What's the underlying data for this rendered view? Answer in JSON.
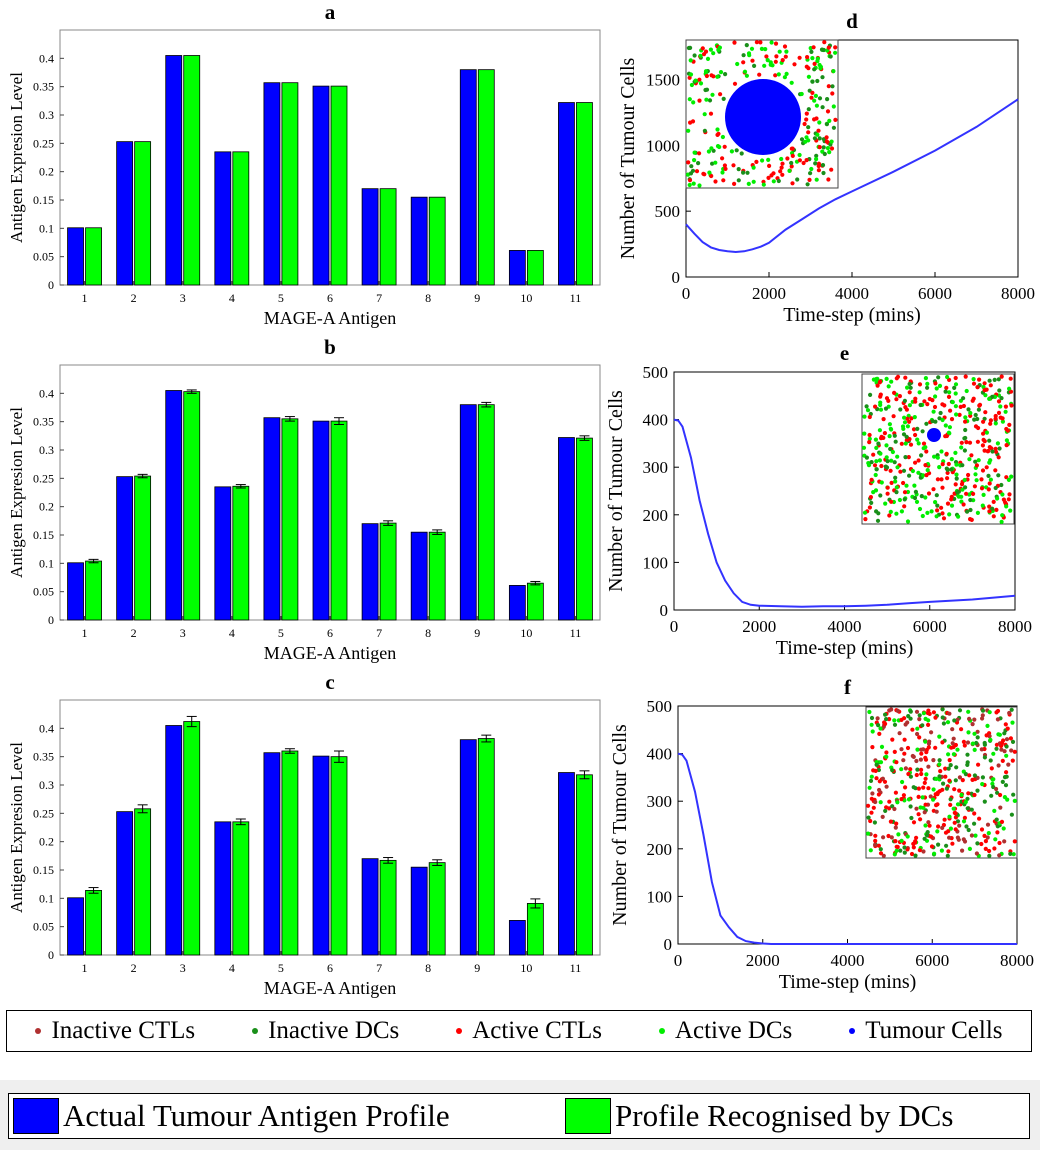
{
  "colors": {
    "actual": "#0000ff",
    "dc": "#00ff00",
    "line": "#3333ff",
    "inactive_ctl": "#b03030",
    "inactive_dc": "#1a8f1a",
    "active_ctl": "#ff0000",
    "active_dc": "#00ee00",
    "tumour": "#0000ff"
  },
  "chart_data": [
    {
      "id": "a",
      "type": "bar",
      "title": "a",
      "xlabel": "MAGE-A Antigen",
      "ylabel": "Antigen Expresion Level",
      "categories": [
        "1",
        "2",
        "3",
        "4",
        "5",
        "6",
        "7",
        "8",
        "9",
        "10",
        "11"
      ],
      "ylim": [
        0,
        0.45
      ],
      "yticks": [
        "0",
        "0.05",
        "0.1",
        "0.15",
        "0.2",
        "0.25",
        "0.3",
        "0.35",
        "0.4"
      ],
      "series": [
        {
          "name": "Actual Tumour Antigen Profile",
          "values": [
            0.101,
            0.253,
            0.405,
            0.235,
            0.357,
            0.351,
            0.17,
            0.155,
            0.38,
            0.061,
            0.322
          ],
          "err": [
            0,
            0,
            0,
            0,
            0,
            0,
            0,
            0,
            0,
            0,
            0
          ]
        },
        {
          "name": "Profile Recognised by DCs",
          "values": [
            0.101,
            0.253,
            0.405,
            0.235,
            0.357,
            0.351,
            0.17,
            0.155,
            0.38,
            0.061,
            0.322
          ],
          "err": [
            0,
            0,
            0,
            0,
            0,
            0,
            0,
            0,
            0,
            0,
            0
          ]
        }
      ]
    },
    {
      "id": "b",
      "type": "bar",
      "title": "b",
      "xlabel": "MAGE-A Antigen",
      "ylabel": "Antigen Expresion Level",
      "categories": [
        "1",
        "2",
        "3",
        "4",
        "5",
        "6",
        "7",
        "8",
        "9",
        "10",
        "11"
      ],
      "ylim": [
        0,
        0.45
      ],
      "yticks": [
        "0",
        "0.05",
        "0.1",
        "0.15",
        "0.2",
        "0.25",
        "0.3",
        "0.35",
        "0.4"
      ],
      "series": [
        {
          "name": "Actual Tumour Antigen Profile",
          "values": [
            0.101,
            0.253,
            0.405,
            0.235,
            0.357,
            0.351,
            0.17,
            0.155,
            0.38,
            0.061,
            0.322
          ],
          "err": [
            0,
            0,
            0,
            0,
            0,
            0,
            0,
            0,
            0,
            0,
            0
          ]
        },
        {
          "name": "Profile Recognised by DCs",
          "values": [
            0.104,
            0.254,
            0.403,
            0.236,
            0.355,
            0.351,
            0.171,
            0.155,
            0.38,
            0.065,
            0.321
          ],
          "err": [
            0.003,
            0.003,
            0.003,
            0.003,
            0.004,
            0.006,
            0.004,
            0.004,
            0.004,
            0.003,
            0.004
          ]
        }
      ]
    },
    {
      "id": "c",
      "type": "bar",
      "title": "c",
      "xlabel": "MAGE-A Antigen",
      "ylabel": "Antigen Expresion Level",
      "categories": [
        "1",
        "2",
        "3",
        "4",
        "5",
        "6",
        "7",
        "8",
        "9",
        "10",
        "11"
      ],
      "ylim": [
        0,
        0.45
      ],
      "yticks": [
        "0",
        "0.05",
        "0.1",
        "0.15",
        "0.2",
        "0.25",
        "0.3",
        "0.35",
        "0.4"
      ],
      "series": [
        {
          "name": "Actual Tumour Antigen Profile",
          "values": [
            0.101,
            0.253,
            0.405,
            0.235,
            0.357,
            0.351,
            0.17,
            0.155,
            0.38,
            0.061,
            0.322
          ],
          "err": [
            0,
            0,
            0,
            0,
            0,
            0,
            0,
            0,
            0,
            0,
            0
          ]
        },
        {
          "name": "Profile Recognised by DCs",
          "values": [
            0.114,
            0.258,
            0.412,
            0.235,
            0.36,
            0.35,
            0.167,
            0.163,
            0.382,
            0.091,
            0.318
          ],
          "err": [
            0.005,
            0.007,
            0.009,
            0.005,
            0.004,
            0.01,
            0.005,
            0.005,
            0.006,
            0.008,
            0.007
          ]
        }
      ]
    },
    {
      "id": "d",
      "type": "line",
      "title": "d",
      "xlabel": "Time-step (mins)",
      "ylabel": "Number of Tumour Cells",
      "xlim": [
        0,
        8000
      ],
      "ylim": [
        0,
        1800
      ],
      "xticks": [
        0,
        2000,
        4000,
        6000,
        8000
      ],
      "yticks": [
        0,
        500,
        1000,
        1500
      ],
      "x": [
        0,
        200,
        400,
        600,
        800,
        1000,
        1200,
        1400,
        1600,
        1800,
        2000,
        2400,
        2800,
        3200,
        3600,
        4000,
        5000,
        6000,
        7000,
        8000
      ],
      "y": [
        400,
        330,
        265,
        225,
        205,
        195,
        190,
        195,
        210,
        230,
        260,
        360,
        440,
        520,
        590,
        650,
        800,
        960,
        1140,
        1350
      ],
      "inset": "top-left"
    },
    {
      "id": "e",
      "type": "line",
      "title": "e",
      "xlabel": "Time-step (mins)",
      "ylabel": "Number of Tumour Cells",
      "xlim": [
        0,
        8000
      ],
      "ylim": [
        0,
        500
      ],
      "xticks": [
        0,
        2000,
        4000,
        6000,
        8000
      ],
      "yticks": [
        0,
        100,
        200,
        300,
        400,
        500
      ],
      "x": [
        0,
        100,
        200,
        400,
        600,
        800,
        1000,
        1200,
        1400,
        1600,
        1800,
        2000,
        2500,
        3000,
        3500,
        4000,
        4500,
        5000,
        5500,
        6000,
        7000,
        8000
      ],
      "y": [
        400,
        398,
        385,
        320,
        230,
        160,
        100,
        62,
        35,
        17,
        11,
        9,
        8,
        7,
        8,
        8,
        9,
        11,
        14,
        17,
        22,
        30
      ],
      "inset": "top-right"
    },
    {
      "id": "f",
      "type": "line",
      "title": "f",
      "xlabel": "Time-step (mins)",
      "ylabel": "Number of Tumour Cells",
      "xlim": [
        0,
        8000
      ],
      "ylim": [
        0,
        500
      ],
      "xticks": [
        0,
        2000,
        4000,
        6000,
        8000
      ],
      "yticks": [
        0,
        100,
        200,
        300,
        400,
        500
      ],
      "x": [
        0,
        100,
        200,
        400,
        600,
        800,
        1000,
        1200,
        1400,
        1600,
        1800,
        2000,
        2200,
        3000,
        4000,
        6000,
        8000
      ],
      "y": [
        400,
        398,
        385,
        320,
        230,
        130,
        60,
        35,
        15,
        6,
        3,
        1,
        0,
        0,
        0,
        0,
        0
      ],
      "inset": "top-right"
    }
  ],
  "legend_cells": {
    "items": [
      "Inactive CTLs",
      "Inactive DCs",
      "Active CTLs",
      "Active DCs",
      "Tumour Cells"
    ]
  },
  "legend_bars": {
    "items": [
      "Actual Tumour Antigen Profile",
      "Profile Recognised by DCs"
    ]
  }
}
